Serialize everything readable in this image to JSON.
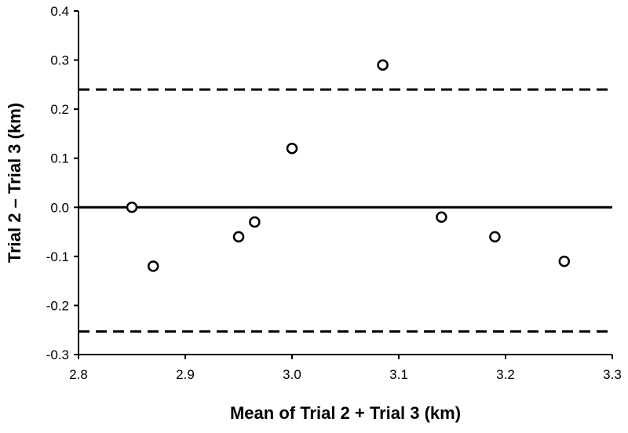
{
  "chart_data": {
    "type": "scatter",
    "xlabel": "Mean of Trial 2 + Trial 3 (km)",
    "ylabel": "Trial 2 – Trial 3 (km)",
    "xlim": [
      2.8,
      3.3
    ],
    "ylim": [
      -0.3,
      0.4
    ],
    "x_ticks": [
      "2.8",
      "2.9",
      "3.0",
      "3.1",
      "3.2",
      "3.3"
    ],
    "y_ticks": [
      "-0.3",
      "-0.2",
      "-0.1",
      "0.0",
      "0.1",
      "0.2",
      "0.3",
      "0.4"
    ],
    "grid": false,
    "points": [
      {
        "x": 2.85,
        "y": 0.0
      },
      {
        "x": 2.87,
        "y": -0.12
      },
      {
        "x": 2.95,
        "y": -0.06
      },
      {
        "x": 2.965,
        "y": -0.03
      },
      {
        "x": 3.0,
        "y": 0.12
      },
      {
        "x": 3.085,
        "y": 0.29
      },
      {
        "x": 3.14,
        "y": -0.02
      },
      {
        "x": 3.19,
        "y": -0.06
      },
      {
        "x": 3.255,
        "y": -0.11
      }
    ],
    "reference_lines": [
      {
        "y": 0.0,
        "style": "solid"
      },
      {
        "y": 0.24,
        "style": "dashed"
      },
      {
        "y": -0.253,
        "style": "dashed"
      }
    ],
    "marker": "open-circle",
    "colors": {
      "marker": "#000000",
      "lines": "#000000"
    }
  }
}
